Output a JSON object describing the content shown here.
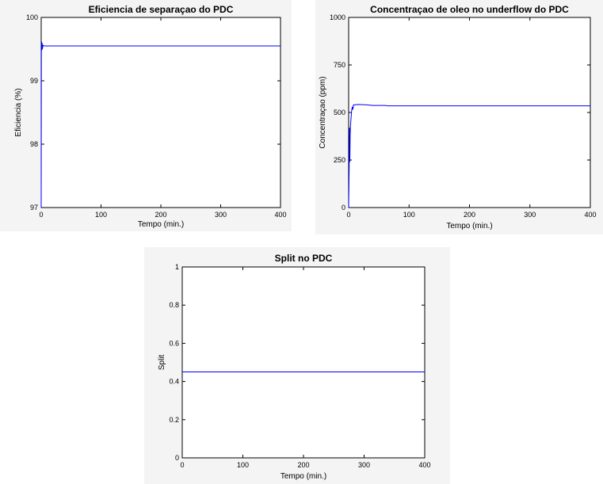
{
  "chart_data": [
    {
      "type": "line",
      "title": "Eficiencia de separaçao do PDC",
      "xlabel": "Tempo (min.)",
      "ylabel": "Eficiencia (%)",
      "xlim": [
        0,
        400
      ],
      "ylim": [
        97,
        100
      ],
      "xticks": [
        "0",
        "100",
        "200",
        "300",
        "400"
      ],
      "yticks": [
        "97",
        "98",
        "99",
        "100"
      ],
      "grid": false,
      "series": [
        {
          "color": "#0000ff",
          "x": [
            0,
            0.3,
            0.6,
            1,
            1.5,
            2,
            3,
            5,
            10,
            50,
            100,
            200,
            300,
            400
          ],
          "y": [
            97.0,
            99.5,
            99.62,
            99.48,
            99.6,
            99.5,
            99.56,
            99.55,
            99.55,
            99.55,
            99.55,
            99.55,
            99.55,
            99.55
          ]
        }
      ]
    },
    {
      "type": "line",
      "title": "Concentraçao de oleo no underflow do PDC",
      "xlabel": "Tempo (min.)",
      "ylabel": "Concentraçao (ppm)",
      "xlim": [
        0,
        400
      ],
      "ylim": [
        0,
        1000
      ],
      "xticks": [
        "0",
        "100",
        "200",
        "300",
        "400"
      ],
      "yticks": [
        "0",
        "250",
        "500",
        "750",
        "1000"
      ],
      "grid": false,
      "series": [
        {
          "color": "#0000ff",
          "x": [
            0,
            1,
            1.5,
            2,
            2.5,
            3,
            4,
            5,
            6,
            7,
            8,
            10,
            15,
            30,
            40,
            60,
            65,
            70,
            100,
            200,
            300,
            400
          ],
          "y": [
            0,
            250,
            420,
            240,
            380,
            430,
            470,
            510,
            530,
            515,
            540,
            540,
            542,
            540,
            537,
            537,
            535,
            535,
            535,
            535,
            535,
            535
          ]
        }
      ]
    },
    {
      "type": "line",
      "title": "Split no PDC",
      "xlabel": "Tempo (min.)",
      "ylabel": "Split",
      "xlim": [
        0,
        400
      ],
      "ylim": [
        0,
        1
      ],
      "xticks": [
        "0",
        "100",
        "200",
        "300",
        "400"
      ],
      "yticks": [
        "0",
        "0.2",
        "0.4",
        "0.6",
        "0.8",
        "1"
      ],
      "grid": false,
      "series": [
        {
          "color": "#0000ff",
          "x": [
            0,
            400
          ],
          "y": [
            0.45,
            0.45
          ]
        }
      ]
    }
  ]
}
